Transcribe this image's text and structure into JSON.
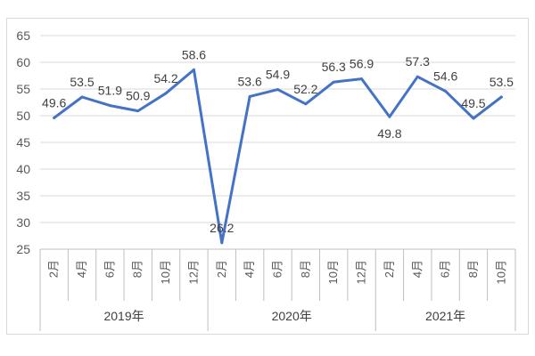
{
  "chart_data": {
    "type": "line",
    "title": "",
    "xlabel": "",
    "ylabel": "",
    "ylim": [
      25,
      65
    ],
    "yticks": [
      25,
      30,
      35,
      40,
      45,
      50,
      55,
      60,
      65
    ],
    "grid": true,
    "categories": [
      "2月",
      "4月",
      "6月",
      "8月",
      "10月",
      "12月",
      "2月",
      "4月",
      "6月",
      "8月",
      "10月",
      "12月",
      "2月",
      "4月",
      "6月",
      "8月",
      "10月"
    ],
    "groups": [
      {
        "label": "2019年",
        "count": 6
      },
      {
        "label": "2020年",
        "count": 6
      },
      {
        "label": "2021年",
        "count": 5
      }
    ],
    "series": [
      {
        "name": "",
        "color": "#4472c4",
        "values": [
          49.6,
          53.5,
          51.9,
          50.9,
          54.2,
          58.6,
          26.2,
          53.6,
          54.9,
          52.2,
          56.3,
          56.9,
          49.8,
          57.3,
          54.6,
          49.5,
          53.5
        ],
        "labels": [
          "49.6",
          "53.5",
          "51.9",
          "50.9",
          "54.2",
          "58.6",
          "26.2",
          "53.6",
          "54.9",
          "52.2",
          "56.3",
          "56.9",
          "49.8",
          "57.3",
          "54.6",
          "49.5",
          "53.5"
        ]
      }
    ]
  }
}
